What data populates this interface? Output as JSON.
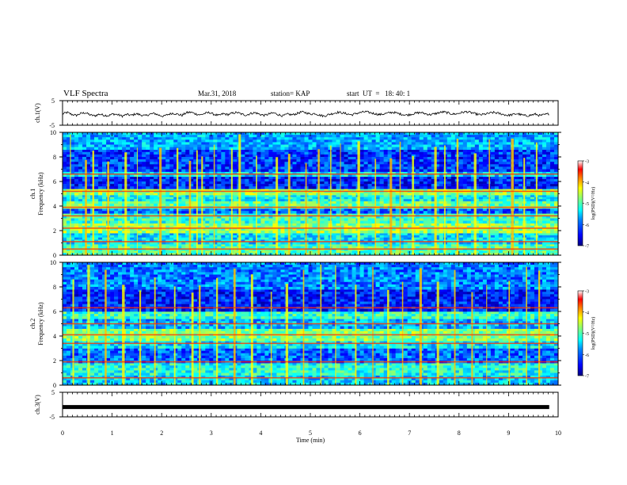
{
  "header": {
    "title": "VLF Spectra",
    "date": "Mar.31, 2018",
    "station": "station= KAP",
    "start_time": "start  UT  =   18: 40: 1"
  },
  "chart_data": [
    {
      "type": "line",
      "name": "ch1-waveform",
      "ylabel": "ch.1(V)",
      "xlim": [
        0,
        10
      ],
      "ylim": [
        -5,
        5
      ],
      "y_ticks": [
        "5",
        "-5"
      ],
      "note_values": "noisy waveform fluctuating roughly between -1.5 and 0.5 V",
      "samples": [
        -0.4,
        0.2,
        -0.6,
        -1.0,
        -0.2,
        0.1,
        -0.8,
        -1.2,
        -0.5,
        -0.9,
        -1.1,
        -0.4,
        -0.7,
        -1.3,
        -0.6,
        -1.0,
        -0.3,
        -0.8,
        -1.2,
        -0.5,
        -0.2,
        -0.9,
        -1.4,
        -0.6,
        -0.1,
        -0.5,
        -1.0,
        0.1,
        0.3,
        -0.4,
        -0.8,
        -0.2,
        0.2,
        -0.6,
        -1.1,
        -0.3,
        -0.7,
        -0.1,
        0.2,
        -0.5,
        -0.9,
        -0.2,
        0.1,
        -0.6,
        -1.0,
        -0.4,
        0.0,
        -0.7,
        -1.2,
        -0.5,
        -0.8,
        -0.3,
        0.4,
        0.1,
        -0.5,
        -0.2,
        -0.9,
        -1.3,
        -0.6,
        -0.2,
        0.3,
        0.0,
        -0.4,
        -0.8,
        -0.2,
        0.2,
        0.5,
        0.1,
        -0.3,
        -0.7,
        -0.4,
        0.0,
        0.3,
        -0.2,
        -0.6,
        -0.9,
        -0.5,
        -0.1,
        0.2,
        -0.3,
        -0.7,
        -0.4,
        0.1,
        0.4,
        0.0,
        -0.5,
        -0.3,
        0.2,
        0.5,
        0.1,
        -0.4,
        -0.8,
        -0.5,
        -0.1,
        0.2,
        -0.2,
        -0.6,
        -1.0,
        -0.7,
        -0.3,
        -0.8,
        -1.2,
        -0.9,
        -0.5,
        -1.1,
        -0.7,
        -0.3
      ]
    },
    {
      "type": "heatmap",
      "name": "ch1-spectrogram",
      "ylabel_top": "ch.1",
      "ylabel": "Frequency  (kHz)",
      "xlim": [
        0,
        10
      ],
      "ylim": [
        0,
        10
      ],
      "y_ticks": [
        "0",
        "2",
        "4",
        "6",
        "8",
        "10"
      ],
      "colorbar": {
        "label": "log(PSD)(V²/Hz)",
        "range": [
          -7,
          -3
        ],
        "ticks": [
          "-3",
          "-4",
          "-5",
          "-6",
          "-7"
        ]
      },
      "bands_khz": [
        {
          "f": [
            0.0,
            0.9
          ],
          "level": -5.2
        },
        {
          "f": [
            0.9,
            1.8
          ],
          "level": -5.6
        },
        {
          "f": [
            1.8,
            2.6
          ],
          "level": -4.9
        },
        {
          "f": [
            2.6,
            3.4
          ],
          "level": -5.3
        },
        {
          "f": [
            3.4,
            3.8
          ],
          "level": -6.1
        },
        {
          "f": [
            3.8,
            4.4
          ],
          "level": -5.1
        },
        {
          "f": [
            4.4,
            4.9
          ],
          "level": -5.5
        },
        {
          "f": [
            4.9,
            5.4
          ],
          "level": -4.9
        },
        {
          "f": [
            5.4,
            6.4
          ],
          "level": -6.4
        },
        {
          "f": [
            6.4,
            6.8
          ],
          "level": -5.6
        },
        {
          "f": [
            6.8,
            8.6
          ],
          "level": -6.3
        },
        {
          "f": [
            8.6,
            10.0
          ],
          "level": -5.8
        }
      ],
      "lines_khz": [
        0.5,
        1.1,
        2.2,
        3.2,
        3.9,
        5.2,
        6.6
      ],
      "vertical_bursts_min": [
        0.15,
        0.45,
        0.6,
        0.9,
        1.25,
        1.5,
        1.95,
        2.3,
        2.55,
        2.7,
        2.8,
        3.05,
        3.4,
        3.55,
        3.9,
        4.3,
        4.55,
        4.9,
        5.15,
        5.4,
        5.6,
        5.95,
        6.3,
        6.6,
        6.8,
        7.05,
        7.5,
        7.7,
        7.95,
        8.3,
        8.6,
        9.05,
        9.3,
        9.55
      ]
    },
    {
      "type": "heatmap",
      "name": "ch2-spectrogram",
      "ylabel_top": "ch.2",
      "ylabel": "Frequency  (kHz)",
      "xlim": [
        0,
        10
      ],
      "ylim": [
        0,
        10
      ],
      "y_ticks": [
        "0",
        "2",
        "4",
        "6",
        "8",
        "10"
      ],
      "colorbar": {
        "label": "log(PSD)(V²/Hz)",
        "range": [
          -7,
          -3
        ],
        "ticks": [
          "-3",
          "-4",
          "-5",
          "-6",
          "-7"
        ]
      },
      "bands_khz": [
        {
          "f": [
            0.0,
            0.8
          ],
          "level": -5.7
        },
        {
          "f": [
            0.8,
            1.8
          ],
          "level": -5.4
        },
        {
          "f": [
            1.8,
            3.0
          ],
          "level": -6.1
        },
        {
          "f": [
            3.0,
            3.6
          ],
          "level": -5.6
        },
        {
          "f": [
            3.6,
            4.6
          ],
          "level": -5.0
        },
        {
          "f": [
            4.6,
            5.4
          ],
          "level": -5.8
        },
        {
          "f": [
            5.4,
            6.0
          ],
          "level": -5.3
        },
        {
          "f": [
            6.0,
            7.8
          ],
          "level": -6.4
        },
        {
          "f": [
            7.8,
            10.0
          ],
          "level": -6.0
        }
      ],
      "lines_khz": [
        0.6,
        1.9,
        3.4,
        4.1,
        5.0,
        6.3
      ],
      "vertical_bursts_min": [
        0.2,
        0.5,
        0.85,
        1.2,
        1.55,
        1.85,
        2.25,
        2.6,
        2.75,
        3.1,
        3.45,
        3.8,
        4.2,
        4.5,
        4.85,
        5.2,
        5.5,
        5.9,
        6.25,
        6.55,
        6.85,
        7.2,
        7.55,
        7.9,
        8.25,
        8.55,
        9.0,
        9.35,
        9.6
      ]
    },
    {
      "type": "line",
      "name": "ch3-waveform",
      "ylabel": "ch.3(V)",
      "xlim": [
        0,
        10
      ],
      "ylim": [
        -5,
        5
      ],
      "y_ticks": [
        "5",
        "-5"
      ],
      "constant_value": -1.0
    }
  ],
  "xaxis": {
    "label": "Time  (min)",
    "ticks": [
      "0",
      "1",
      "2",
      "3",
      "4",
      "5",
      "6",
      "7",
      "8",
      "9",
      "10"
    ]
  },
  "colors": {
    "colormap": [
      "#00007f",
      "#0000ff",
      "#007fff",
      "#00ffff",
      "#7fff7f",
      "#ffff00",
      "#ff7f00",
      "#ff0000",
      "#ffffff"
    ]
  }
}
